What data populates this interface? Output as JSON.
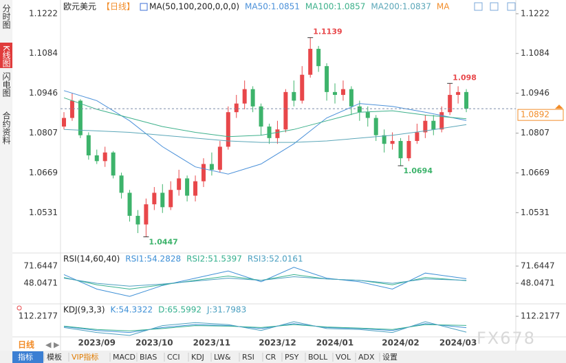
{
  "ui": {
    "side_tabs": [
      "分时图",
      "K线图",
      "闪电图",
      "合约资料"
    ],
    "period": "日线",
    "toolbar": [
      "指标",
      "模板",
      "VIP指标",
      "MACD",
      "BIAS",
      "CCI",
      "KDJ",
      "LW&",
      "RSI",
      "CR",
      "PSY",
      "BOLL",
      "VOL",
      "ADX",
      "设置"
    ],
    "watermark": "FX678"
  },
  "chart_data": [
    {
      "type": "candlestick",
      "title": "欧元美元",
      "subtitle": "【日线】",
      "indicator": "MA(50,100,200,0,0,0)",
      "extra_legend": "MA",
      "up_color": "#e8474a",
      "down_color": "#3db36b",
      "candles": [
        [
          1.083,
          1.088,
          1.082,
          1.086
        ],
        [
          1.086,
          1.0945,
          1.085,
          1.092
        ],
        [
          1.092,
          1.0925,
          1.079,
          1.08
        ],
        [
          1.08,
          1.081,
          1.0715,
          1.073
        ],
        [
          1.073,
          1.075,
          1.07,
          1.071
        ],
        [
          1.071,
          1.076,
          1.069,
          1.074
        ],
        [
          1.074,
          1.0745,
          1.065,
          1.066
        ],
        [
          1.066,
          1.067,
          1.058,
          1.06
        ],
        [
          1.06,
          1.061,
          1.05,
          1.052
        ],
        [
          1.052,
          1.054,
          1.046,
          1.049
        ],
        [
          1.049,
          1.058,
          1.0447,
          1.056
        ],
        [
          1.056,
          1.062,
          1.054,
          1.06
        ],
        [
          1.06,
          1.063,
          1.053,
          1.055
        ],
        [
          1.055,
          1.064,
          1.054,
          1.061
        ],
        [
          1.061,
          1.068,
          1.059,
          1.065
        ],
        [
          1.065,
          1.066,
          1.057,
          1.059
        ],
        [
          1.059,
          1.066,
          1.057,
          1.064
        ],
        [
          1.064,
          1.072,
          1.062,
          1.07
        ],
        [
          1.07,
          1.074,
          1.066,
          1.068
        ],
        [
          1.068,
          1.078,
          1.067,
          1.076
        ],
        [
          1.076,
          1.09,
          1.075,
          1.088
        ],
        [
          1.088,
          1.094,
          1.086,
          1.091
        ],
        [
          1.091,
          1.099,
          1.089,
          1.096
        ],
        [
          1.096,
          1.097,
          1.088,
          1.09
        ],
        [
          1.09,
          1.091,
          1.08,
          1.083
        ],
        [
          1.083,
          1.084,
          1.077,
          1.079
        ],
        [
          1.079,
          1.085,
          1.077,
          1.082
        ],
        [
          1.082,
          1.096,
          1.081,
          1.095
        ],
        [
          1.095,
          1.099,
          1.09,
          1.092
        ],
        [
          1.092,
          1.104,
          1.091,
          1.101
        ],
        [
          1.101,
          1.1139,
          1.1,
          1.11
        ],
        [
          1.11,
          1.111,
          1.102,
          1.104
        ],
        [
          1.104,
          1.105,
          1.092,
          1.095
        ],
        [
          1.095,
          1.098,
          1.091,
          1.094
        ],
        [
          1.094,
          1.099,
          1.092,
          1.096
        ],
        [
          1.096,
          1.097,
          1.087,
          1.09
        ],
        [
          1.09,
          1.092,
          1.085,
          1.088
        ],
        [
          1.088,
          1.09,
          1.083,
          1.086
        ],
        [
          1.086,
          1.087,
          1.078,
          1.08
        ],
        [
          1.08,
          1.082,
          1.074,
          1.077
        ],
        [
          1.077,
          1.081,
          1.075,
          1.078
        ],
        [
          1.078,
          1.079,
          1.0694,
          1.072
        ],
        [
          1.072,
          1.08,
          1.071,
          1.078
        ],
        [
          1.078,
          1.084,
          1.077,
          1.081
        ],
        [
          1.081,
          1.087,
          1.079,
          1.085
        ],
        [
          1.085,
          1.087,
          1.08,
          1.082
        ],
        [
          1.082,
          1.09,
          1.081,
          1.088
        ],
        [
          1.088,
          1.098,
          1.087,
          1.094
        ],
        [
          1.094,
          1.097,
          1.091,
          1.095
        ],
        [
          1.095,
          1.096,
          1.088,
          1.0892
        ]
      ],
      "x": [
        0,
        4,
        8,
        12,
        16,
        20,
        24,
        28,
        32,
        36,
        40,
        44,
        49
      ],
      "series": [
        {
          "name": "MA50:1.0851",
          "color": "#4a90d9",
          "values": [
            1.0955,
            1.092,
            1.085,
            1.076,
            1.069,
            1.0665,
            1.07,
            1.077,
            1.086,
            1.091,
            1.09,
            1.088,
            1.0851
          ]
        },
        {
          "name": "MA100:1.0857",
          "color": "#3cb08a",
          "values": [
            1.093,
            1.089,
            1.086,
            1.083,
            1.081,
            1.0795,
            1.08,
            1.082,
            1.085,
            1.088,
            1.0885,
            1.087,
            1.0857
          ]
        },
        {
          "name": "MA200:1.0837",
          "color": "#5aa6b8",
          "values": [
            1.082,
            1.0815,
            1.081,
            1.08,
            1.079,
            1.078,
            1.0775,
            1.0775,
            1.078,
            1.079,
            1.08,
            1.0815,
            1.0837
          ]
        }
      ],
      "ylim": [
        1.0398,
        1.1241
      ],
      "yticks": [
        1.0531,
        1.0669,
        1.0807,
        1.0946,
        1.1084,
        1.1222
      ],
      "xticks": [
        {
          "value": 4,
          "label": "2023/09"
        },
        {
          "value": 11,
          "label": "2023/10"
        },
        {
          "value": 18,
          "label": "2023/11"
        },
        {
          "value": 26,
          "label": "2023/12"
        },
        {
          "value": 33,
          "label": "2024/01"
        },
        {
          "value": 41,
          "label": "2024/02"
        },
        {
          "value": 48,
          "label": "2024/03"
        }
      ]
    },
    {
      "type": "line",
      "title": "RSI(14,60,40)",
      "x": [
        0,
        4,
        8,
        12,
        16,
        20,
        24,
        28,
        32,
        36,
        40,
        44,
        49
      ],
      "series": [
        {
          "name": "RSI1:54.2828",
          "color": "#3d8fd6",
          "values": [
            60,
            40,
            30,
            45,
            55,
            65,
            50,
            70,
            55,
            50,
            40,
            62,
            54.2828
          ]
        },
        {
          "name": "RSI2:51.5397",
          "color": "#35b08e",
          "values": [
            56,
            46,
            40,
            46,
            52,
            58,
            52,
            60,
            54,
            52,
            46,
            56,
            51.5397
          ]
        },
        {
          "name": "RSI3:52.0161",
          "color": "#4a9fc0",
          "values": [
            55,
            48,
            44,
            47,
            51,
            55,
            52,
            57,
            54,
            52,
            48,
            54,
            52.0161
          ]
        }
      ],
      "ylim": [
        21.6,
        76.4
      ],
      "yticks": [
        48.0471,
        71.6447
      ]
    },
    {
      "type": "line",
      "title": "KDJ(9,3,3)",
      "x": [
        0,
        4,
        8,
        12,
        16,
        20,
        24,
        28,
        32,
        36,
        40,
        44,
        49
      ],
      "series": [
        {
          "name": "K:54.3322",
          "color": "#3d8fd6",
          "values": [
            60,
            40,
            30,
            55,
            70,
            65,
            50,
            75,
            55,
            50,
            40,
            75,
            54.3322
          ]
        },
        {
          "name": "D:65.5992",
          "color": "#35b08e",
          "values": [
            62,
            45,
            38,
            50,
            65,
            62,
            55,
            70,
            58,
            52,
            45,
            70,
            65.5992
          ]
        },
        {
          "name": "J:31.7983",
          "color": "#4a9fc0",
          "values": [
            55,
            30,
            15,
            65,
            80,
            70,
            40,
            85,
            50,
            45,
            30,
            85,
            31.7983
          ]
        }
      ],
      "ylim": [
        -10,
        130
      ],
      "yticks": [
        112.2177
      ]
    }
  ]
}
